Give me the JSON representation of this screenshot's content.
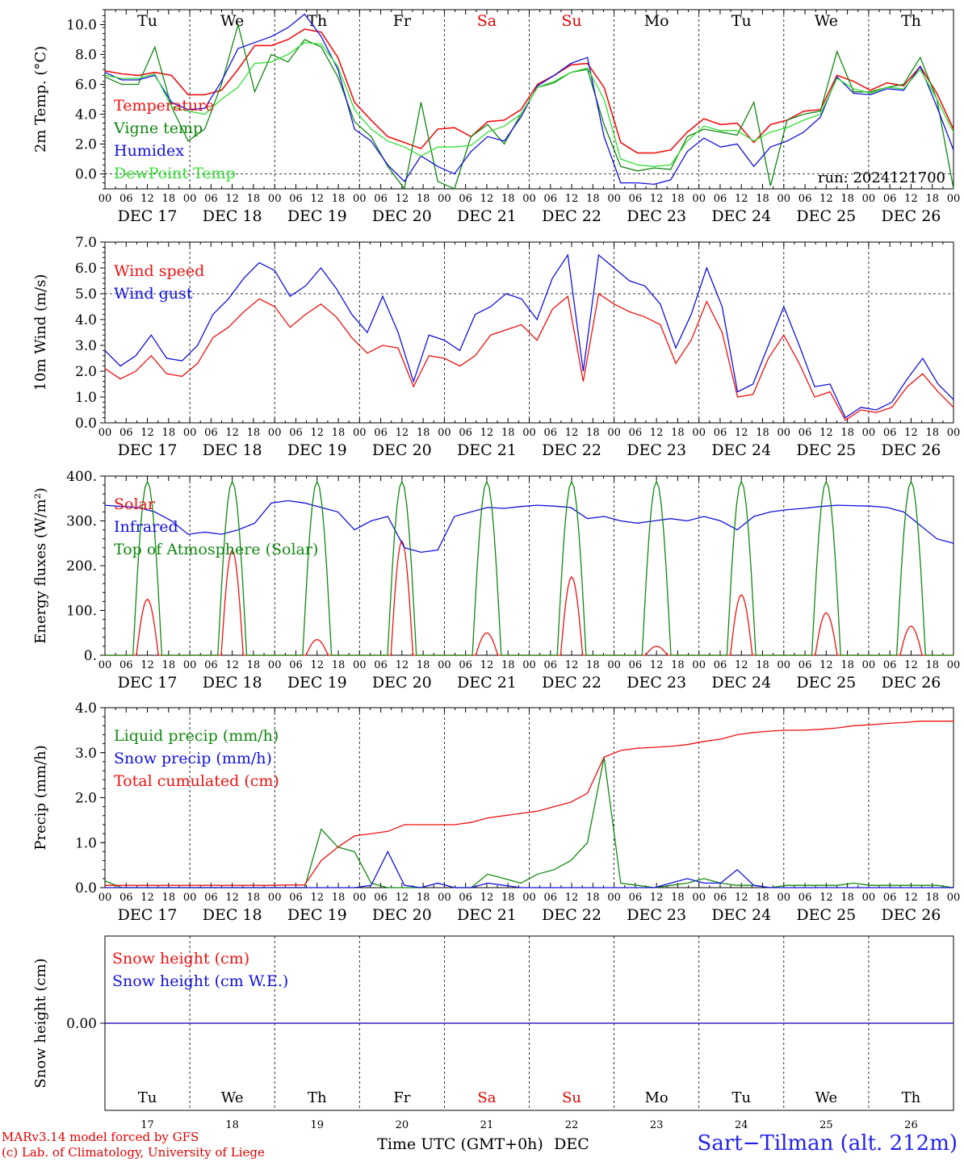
{
  "days_weekday": [
    "Tu",
    "We",
    "Th",
    "Fr",
    "Sa",
    "Su",
    "Mo",
    "Tu",
    "We",
    "Th"
  ],
  "weekend_color": "#e00000",
  "weekend_days": [
    "Sa",
    "Su"
  ],
  "dates": [
    "DEC 17",
    "DEC 18",
    "DEC 19",
    "DEC 20",
    "DEC 21",
    "DEC 22",
    "DEC 23",
    "DEC 24",
    "DEC 25",
    "DEC 26"
  ],
  "day_numbers": [
    "17",
    "18",
    "19",
    "20",
    "21",
    "22",
    "23",
    "24",
    "25",
    "26"
  ],
  "hour_labels": [
    "00",
    "06",
    "12",
    "18"
  ],
  "run_label": "run: 2024121700",
  "x_axis_label": "Time UTC (GMT+0h)",
  "x_axis_month": "DEC",
  "footer": {
    "model": "MARv3.14 model forced by GFS",
    "lab": "(c) Lab. of Climatology, University of Liege",
    "site": "Sart−Tilman (alt. 212m)"
  },
  "colors": {
    "red": "#ee1111",
    "green": "#118811",
    "blue": "#1111dd",
    "light_green": "#33dd33"
  },
  "chart_data": [
    {
      "type": "line",
      "ylabel": "2m Temp. (°C)",
      "ylim": [
        -1,
        11
      ],
      "yticks": [
        "0.0",
        "2.0",
        "4.0",
        "6.0",
        "8.0",
        "10.0"
      ],
      "ytick_values": [
        0,
        2,
        4,
        6,
        8,
        10
      ],
      "hline": 0,
      "x_hours_step": 6,
      "series": [
        {
          "name": "Temperature",
          "color": "red",
          "values": [
            6.9,
            6.7,
            6.6,
            6.8,
            6.6,
            5.3,
            5.3,
            5.6,
            7.0,
            8.6,
            8.6,
            9.0,
            9.7,
            9.5,
            7.8,
            4.8,
            3.6,
            2.5,
            2.1,
            1.7,
            3.0,
            3.1,
            2.5,
            3.5,
            3.6,
            4.3,
            6.0,
            6.6,
            7.3,
            7.4,
            5.8,
            2.1,
            1.4,
            1.4,
            1.6,
            2.8,
            3.7,
            3.3,
            3.4,
            2.1,
            3.3,
            3.6,
            4.2,
            4.3,
            6.6,
            6.2,
            5.6,
            6.1,
            5.9,
            7.2,
            5.4,
            3.0
          ]
        },
        {
          "name": "Vigne temp",
          "color": "green",
          "values": [
            6.5,
            6.0,
            6.0,
            8.5,
            4.5,
            2.2,
            3.0,
            6.0,
            10.0,
            5.5,
            8.0,
            7.5,
            9.0,
            8.5,
            6.5,
            3.5,
            2.5,
            0.5,
            -1.0,
            4.8,
            -0.5,
            -1.0,
            2.5,
            3.3,
            2.0,
            4.0,
            5.8,
            6.1,
            6.8,
            7.0,
            3.3,
            0.5,
            0.2,
            0.4,
            0.3,
            2.5,
            3.0,
            2.8,
            2.6,
            4.8,
            -0.8,
            3.6,
            4.0,
            4.2,
            8.2,
            5.5,
            5.5,
            5.8,
            6.0,
            7.8,
            5.0,
            -1.0
          ]
        },
        {
          "name": "Humidex",
          "color": "blue",
          "values": [
            6.8,
            6.3,
            6.3,
            6.6,
            4.8,
            4.3,
            4.4,
            6.2,
            8.4,
            8.8,
            9.2,
            9.8,
            10.7,
            9.2,
            7.0,
            3.0,
            2.2,
            0.6,
            -0.5,
            1.2,
            0.5,
            0.0,
            1.5,
            2.5,
            2.2,
            3.8,
            5.9,
            6.6,
            7.4,
            7.8,
            2.5,
            -0.6,
            -0.6,
            -0.7,
            -0.4,
            1.5,
            2.4,
            1.8,
            2.0,
            0.5,
            1.8,
            2.2,
            2.8,
            3.8,
            6.5,
            5.4,
            5.3,
            5.7,
            5.6,
            7.2,
            4.5,
            1.6
          ]
        },
        {
          "name": "DewPoint Temp",
          "color": "light_green",
          "values": [
            6.6,
            6.4,
            6.4,
            6.7,
            4.5,
            4.2,
            4.0,
            5.0,
            5.8,
            7.4,
            7.5,
            8.0,
            8.8,
            8.7,
            7.2,
            4.3,
            3.0,
            2.2,
            1.8,
            1.2,
            1.8,
            1.8,
            1.9,
            2.8,
            3.2,
            4.0,
            5.8,
            6.2,
            6.8,
            7.1,
            5.0,
            1.0,
            0.6,
            0.5,
            0.6,
            2.2,
            3.2,
            2.9,
            2.9,
            2.2,
            2.8,
            3.1,
            3.6,
            4.0,
            6.4,
            5.7,
            5.4,
            5.8,
            5.7,
            7.0,
            5.0,
            2.8
          ]
        }
      ]
    },
    {
      "type": "line",
      "ylabel": "10m Wind (m/s)",
      "ylim": [
        0,
        7
      ],
      "yticks": [
        "0.0",
        "1.0",
        "2.0",
        "3.0",
        "4.0",
        "5.0",
        "6.0",
        "7.0"
      ],
      "ytick_values": [
        0,
        1,
        2,
        3,
        4,
        5,
        6,
        7
      ],
      "hline": 5,
      "series": [
        {
          "name": "Wind speed",
          "color": "red",
          "values": [
            2.1,
            1.7,
            2.0,
            2.6,
            1.9,
            1.8,
            2.3,
            3.3,
            3.7,
            4.3,
            4.8,
            4.5,
            3.7,
            4.2,
            4.6,
            4.1,
            3.3,
            2.7,
            3.0,
            2.9,
            1.4,
            2.6,
            2.5,
            2.2,
            2.6,
            3.4,
            3.6,
            3.8,
            3.2,
            4.4,
            4.9,
            1.6,
            5.0,
            4.6,
            4.3,
            4.1,
            3.8,
            2.3,
            3.2,
            4.7,
            3.5,
            1.0,
            1.1,
            2.5,
            3.4,
            2.3,
            1.0,
            1.2,
            0.1,
            0.5,
            0.4,
            0.6,
            1.4,
            1.9,
            1.2,
            0.6
          ]
        },
        {
          "name": "Wind gust",
          "color": "blue",
          "values": [
            2.8,
            2.2,
            2.6,
            3.4,
            2.5,
            2.4,
            3.0,
            4.2,
            4.8,
            5.6,
            6.2,
            5.9,
            4.9,
            5.3,
            6.0,
            5.2,
            4.2,
            3.5,
            4.9,
            3.5,
            1.6,
            3.4,
            3.2,
            2.8,
            4.2,
            4.5,
            5.0,
            4.8,
            4.0,
            5.6,
            6.5,
            2.0,
            6.5,
            6.0,
            5.5,
            5.3,
            4.6,
            2.9,
            4.2,
            6.0,
            4.5,
            1.2,
            1.5,
            3.0,
            4.5,
            3.0,
            1.4,
            1.5,
            0.2,
            0.6,
            0.5,
            0.8,
            1.7,
            2.5,
            1.5,
            0.9
          ]
        }
      ]
    },
    {
      "type": "line",
      "ylabel": "Energy fluxes (W/m²)",
      "ylim": [
        0,
        400
      ],
      "yticks": [
        "0.",
        "100.",
        "200.",
        "300.",
        "400."
      ],
      "ytick_values": [
        0,
        100,
        200,
        300,
        400
      ],
      "series": [
        {
          "name": "Solar",
          "color": "red",
          "peaks": [
            125,
            235,
            35,
            255,
            50,
            175,
            20,
            135,
            95,
            65
          ]
        },
        {
          "name": "Infrared",
          "color": "blue",
          "values": [
            335,
            332,
            330,
            320,
            300,
            270,
            275,
            270,
            280,
            295,
            340,
            345,
            340,
            330,
            320,
            280,
            300,
            310,
            240,
            230,
            235,
            310,
            320,
            330,
            328,
            332,
            335,
            333,
            330,
            305,
            310,
            300,
            295,
            300,
            305,
            300,
            310,
            300,
            280,
            310,
            320,
            325,
            328,
            332,
            335,
            334,
            333,
            330,
            320,
            290,
            260,
            250
          ]
        },
        {
          "name": "Top of Atmosphere (Solar)",
          "color": "green",
          "peaks": [
            388,
            388,
            388,
            388,
            388,
            388,
            388,
            388,
            388,
            388
          ]
        }
      ]
    },
    {
      "type": "line",
      "ylabel": "Precip (mm/h)",
      "ylim": [
        0,
        4
      ],
      "yticks": [
        "0.0",
        "1.0",
        "2.0",
        "3.0",
        "4.0"
      ],
      "ytick_values": [
        0,
        1,
        2,
        3,
        4
      ],
      "series": [
        {
          "name": "Liquid precip (mm/h)",
          "color": "green",
          "values": [
            0.15,
            0,
            0,
            0,
            0,
            0,
            0,
            0,
            0,
            0,
            0,
            0,
            0,
            1.3,
            0.9,
            0.8,
            0.1,
            0,
            0,
            0,
            0.1,
            0,
            0,
            0.3,
            0.2,
            0.1,
            0.3,
            0.4,
            0.6,
            1.0,
            2.9,
            0.1,
            0.05,
            0,
            0.05,
            0.1,
            0.2,
            0.1,
            0.05,
            0.05,
            0,
            0.05,
            0.05,
            0.05,
            0.05,
            0.1,
            0.05,
            0.05,
            0.05,
            0.05,
            0.05,
            0
          ]
        },
        {
          "name": "Snow precip (mm/h)",
          "color": "blue",
          "values": [
            0,
            0,
            0,
            0,
            0,
            0,
            0,
            0,
            0,
            0,
            0,
            0,
            0,
            0,
            0,
            0,
            0.05,
            0.8,
            0.05,
            0,
            0.1,
            0,
            0,
            0.1,
            0.05,
            0,
            0,
            0,
            0,
            0,
            0,
            0,
            0,
            0,
            0.1,
            0.2,
            0.1,
            0.1,
            0.4,
            0.05,
            0,
            0,
            0,
            0,
            0,
            0,
            0,
            0,
            0,
            0,
            0,
            0
          ]
        },
        {
          "name": "Total cumulated (cm)",
          "color": "red",
          "values": [
            0.05,
            0.05,
            0.05,
            0.05,
            0.05,
            0.05,
            0.05,
            0.05,
            0.05,
            0.05,
            0.05,
            0.06,
            0.06,
            0.6,
            0.9,
            1.15,
            1.2,
            1.25,
            1.4,
            1.4,
            1.4,
            1.4,
            1.45,
            1.55,
            1.6,
            1.65,
            1.7,
            1.8,
            1.9,
            2.1,
            2.9,
            3.05,
            3.1,
            3.12,
            3.14,
            3.18,
            3.25,
            3.3,
            3.4,
            3.45,
            3.48,
            3.5,
            3.5,
            3.52,
            3.55,
            3.6,
            3.62,
            3.65,
            3.67,
            3.7,
            3.7,
            3.7
          ]
        }
      ]
    },
    {
      "type": "line",
      "ylabel": "Snow height (cm)",
      "ylim": [
        -1,
        1
      ],
      "yticks": [
        "0.00"
      ],
      "ytick_values": [
        0
      ],
      "series": [
        {
          "name": "Snow height (cm)",
          "color": "red",
          "values": [
            0,
            0
          ]
        },
        {
          "name": "Snow height (cm W.E.)",
          "color": "blue",
          "values": [
            0,
            0
          ]
        }
      ]
    }
  ]
}
